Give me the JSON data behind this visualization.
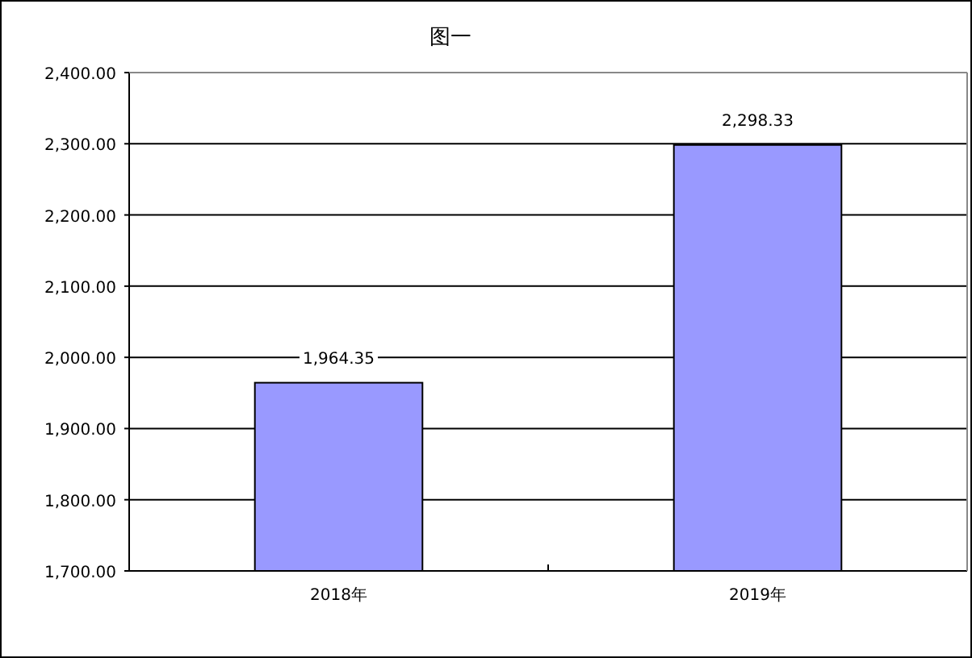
{
  "chart_data": {
    "type": "bar",
    "title": "图一",
    "categories": [
      "2018年",
      "2019年"
    ],
    "values": [
      1964.35,
      2298.33
    ],
    "color": "#9999ff",
    "value_labels": [
      "1,964.35",
      "2,298.33"
    ],
    "ylim": [
      1700,
      2400
    ],
    "yticks": [
      {
        "value": 1700,
        "label": "1,700.00"
      },
      {
        "value": 1800,
        "label": "1,800.00"
      },
      {
        "value": 1900,
        "label": "1,900.00"
      },
      {
        "value": 2000,
        "label": "2,000.00"
      },
      {
        "value": 2100,
        "label": "2,100.00"
      },
      {
        "value": 2200,
        "label": "2,200.00"
      },
      {
        "value": 2300,
        "label": "2,300.00"
      },
      {
        "value": 2400,
        "label": "2,400.00"
      }
    ],
    "grid": "y",
    "legend": false
  }
}
